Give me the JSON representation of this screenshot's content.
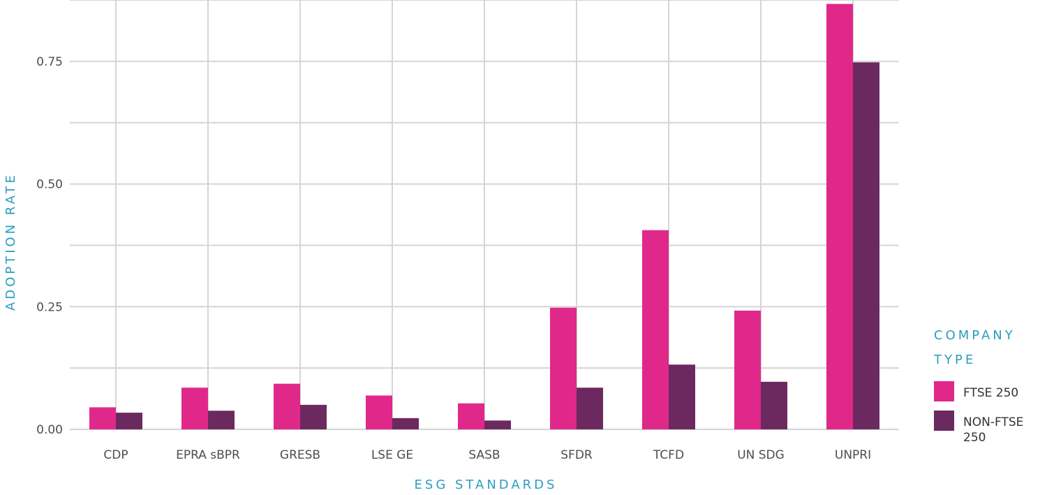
{
  "chart_data": {
    "type": "bar",
    "title": "",
    "xlabel": "ESG STANDARDS",
    "ylabel": "ADOPTION RATE",
    "categories": [
      "CDP",
      "EPRA sBPR",
      "GRESB",
      "LSE GE",
      "SASB",
      "SFDR",
      "TCFD",
      "UN SDG",
      "UNPRI"
    ],
    "series": [
      {
        "name": "FTSE 250",
        "values": [
          0.045,
          0.085,
          0.093,
          0.069,
          0.053,
          0.248,
          0.406,
          0.242,
          0.867
        ]
      },
      {
        "name": "NON-FTSE 250",
        "values": [
          0.034,
          0.038,
          0.05,
          0.023,
          0.018,
          0.085,
          0.132,
          0.097,
          0.748
        ]
      }
    ],
    "y_ticks": [
      "0.00",
      "0.25",
      "0.50",
      "0.75"
    ],
    "ylim": [
      0,
      0.875
    ],
    "grid": true,
    "legend": {
      "title_lines": [
        "COMPANY",
        "TYPE"
      ],
      "placement": "right"
    },
    "colors": {
      "ftse": "#e0288a",
      "non_ftse": "#6b2960",
      "axis_title": "#2a9dc0",
      "grid": "#d5d5d5"
    }
  }
}
